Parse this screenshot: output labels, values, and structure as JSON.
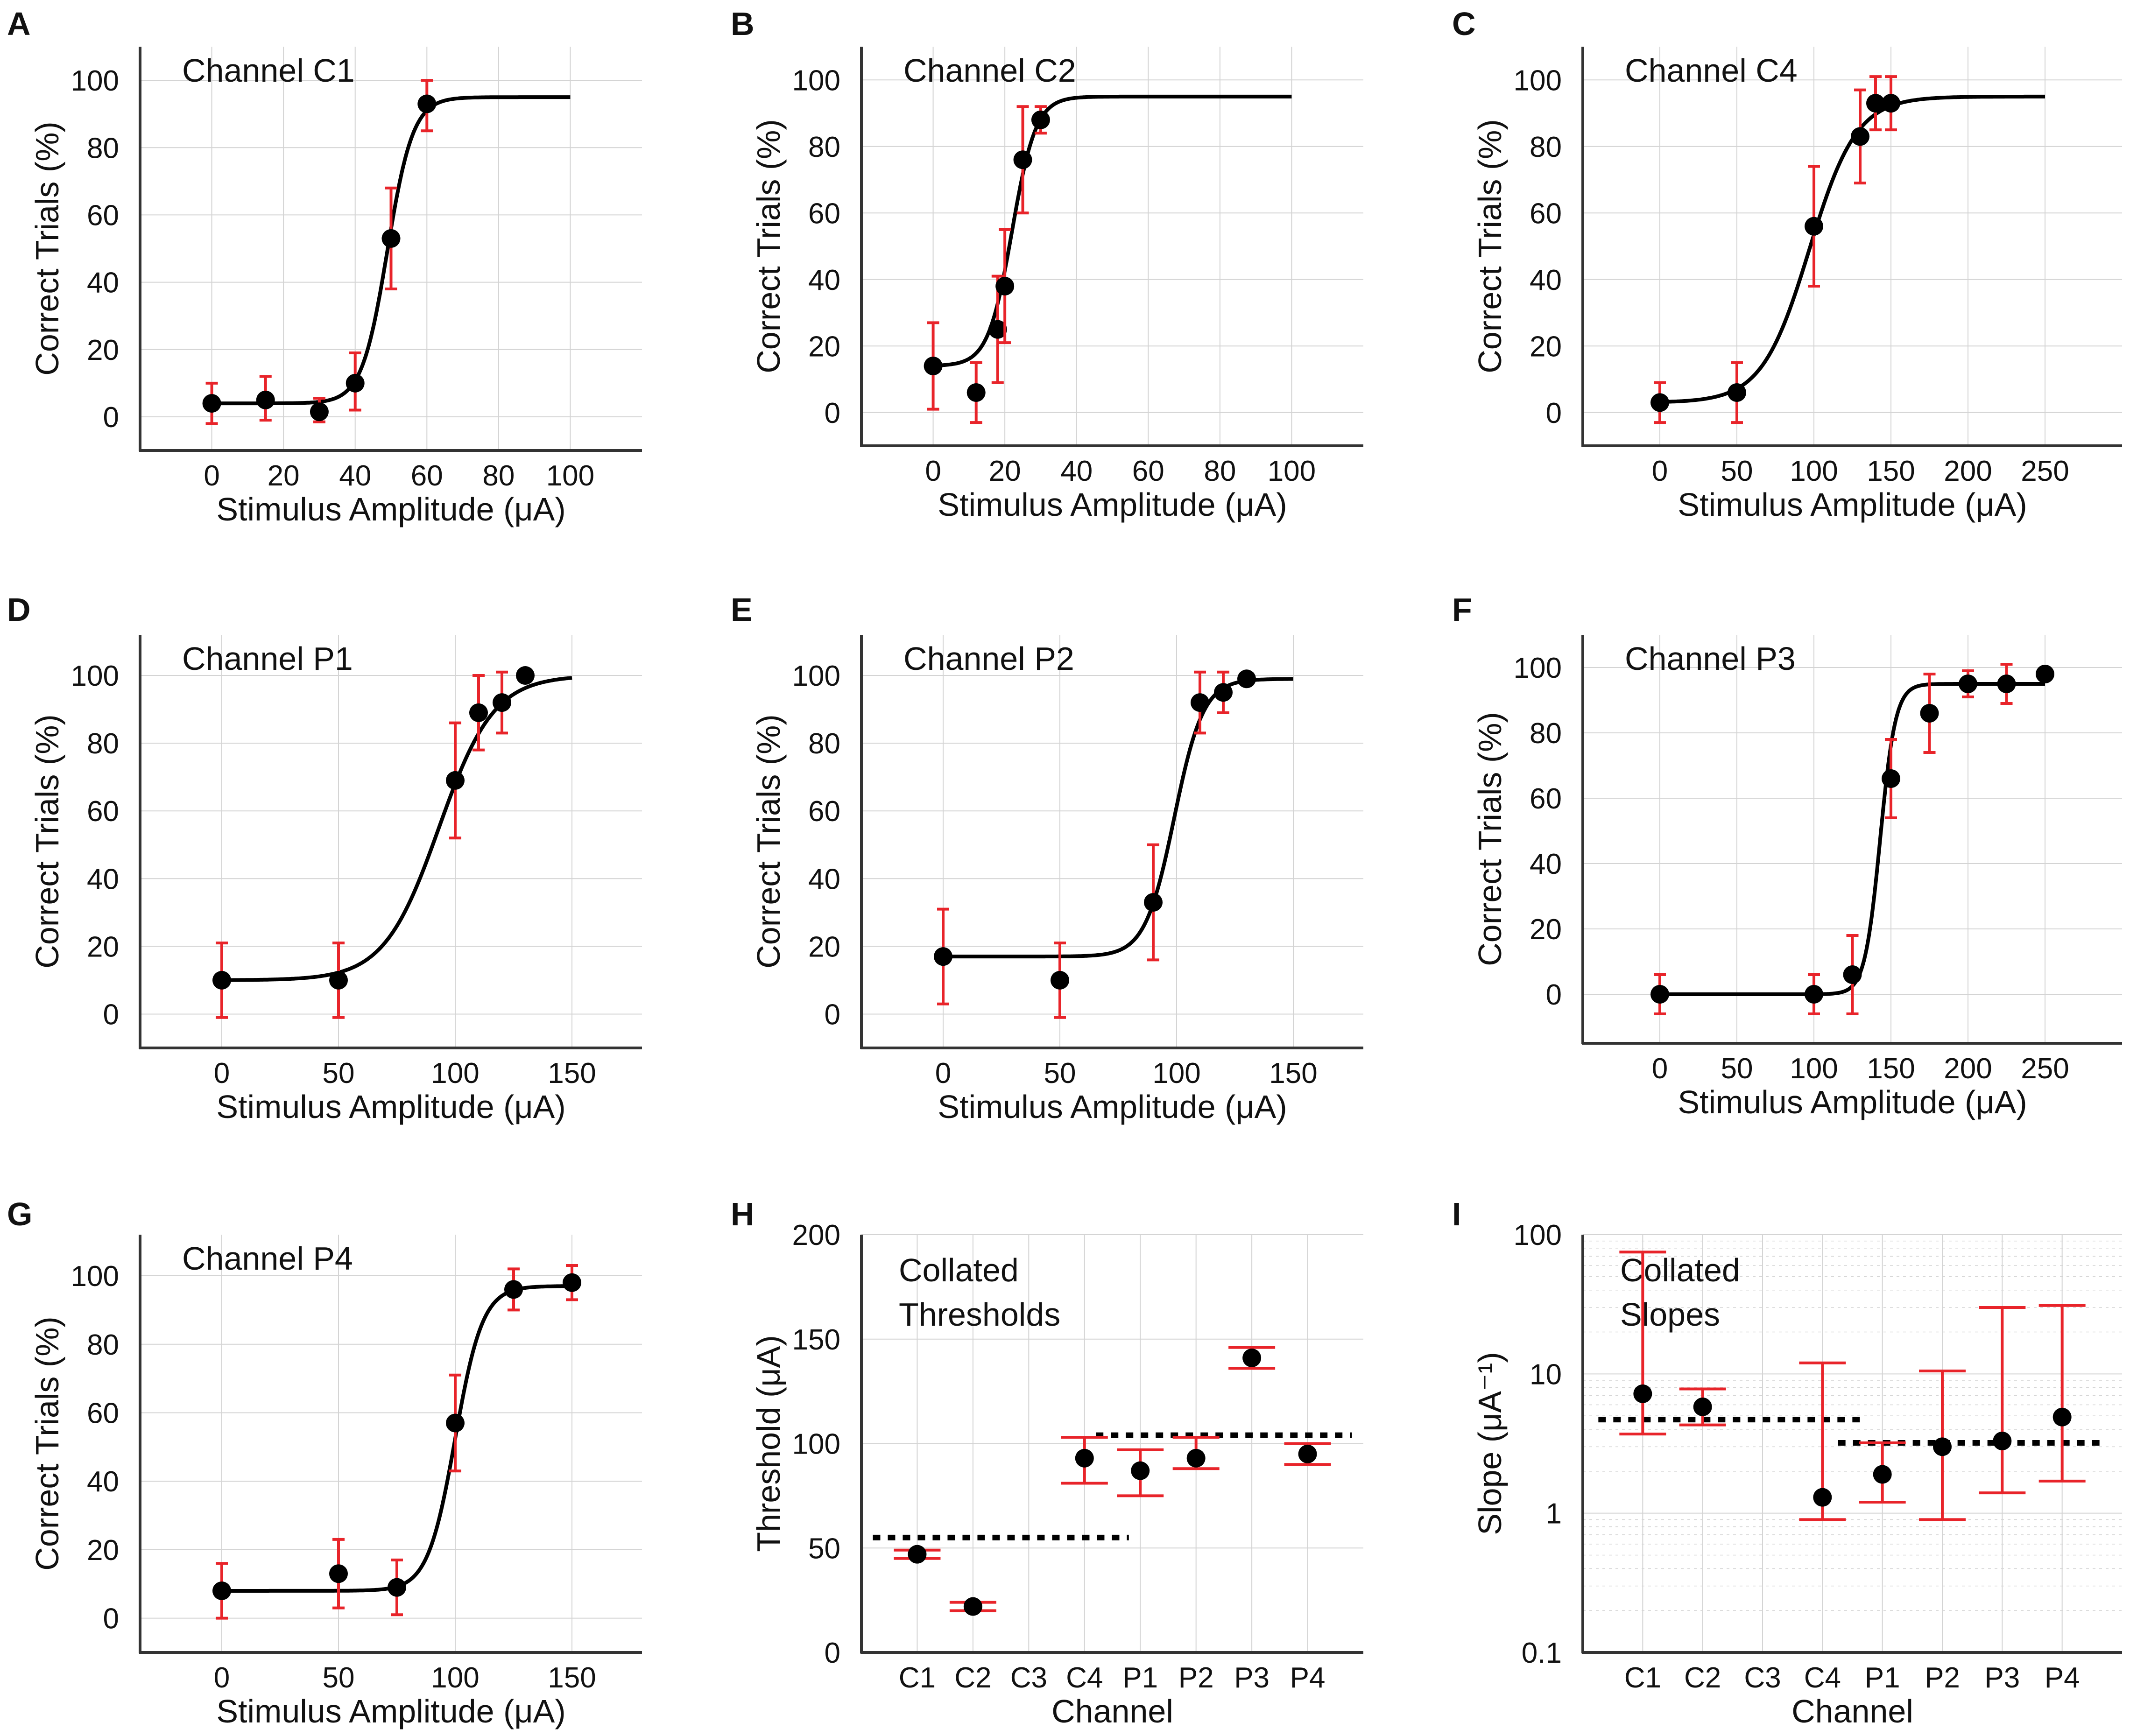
{
  "figure": {
    "colors": {
      "marker": "#000000",
      "errorbar": "#e8242a",
      "curve": "#000000",
      "axis": "#333333",
      "grid": "#d4d4d4"
    }
  },
  "chart_data": [
    {
      "id": "A",
      "type": "scatter",
      "title": "Channel C1",
      "xlabel": "Stimulus Amplitude (μA)",
      "ylabel": "Correct Trials (%)",
      "xlim": [
        -20,
        120
      ],
      "ylim": [
        -10,
        110
      ],
      "xticks": [
        0,
        20,
        40,
        60,
        80,
        100
      ],
      "yticks": [
        0,
        20,
        40,
        60,
        80,
        100
      ],
      "points": [
        {
          "x": 0,
          "y": 4,
          "err_low": 6,
          "err_high": 6
        },
        {
          "x": 15,
          "y": 5,
          "err_low": 6,
          "err_high": 7
        },
        {
          "x": 30,
          "y": 1.5,
          "err_low": 3,
          "err_high": 4
        },
        {
          "x": 40,
          "y": 10,
          "err_low": 8,
          "err_high": 9
        },
        {
          "x": 50,
          "y": 53,
          "err_low": 15,
          "err_high": 15
        },
        {
          "x": 60,
          "y": 93,
          "err_low": 8,
          "err_high": 7
        }
      ],
      "fit": {
        "type": "logistic",
        "lower": 4,
        "upper": 95,
        "threshold": 49,
        "slope": 0.28,
        "x_range": [
          0,
          100
        ]
      }
    },
    {
      "id": "B",
      "type": "scatter",
      "title": "Channel C2",
      "xlabel": "Stimulus Amplitude (μA)",
      "ylabel": "Correct Trials (%)",
      "xlim": [
        -20,
        120
      ],
      "ylim": [
        -10,
        110
      ],
      "xticks": [
        0,
        20,
        40,
        60,
        80,
        100
      ],
      "yticks": [
        0,
        20,
        40,
        60,
        80,
        100
      ],
      "points": [
        {
          "x": 0,
          "y": 14,
          "err_low": 13,
          "err_high": 13
        },
        {
          "x": 12,
          "y": 6,
          "err_low": 9,
          "err_high": 9
        },
        {
          "x": 18,
          "y": 25,
          "err_low": 16,
          "err_high": 16
        },
        {
          "x": 20,
          "y": 38,
          "err_low": 17,
          "err_high": 17
        },
        {
          "x": 25,
          "y": 76,
          "err_low": 16,
          "err_high": 16
        },
        {
          "x": 30,
          "y": 88,
          "err_low": 4,
          "err_high": 4
        }
      ],
      "fit": {
        "type": "logistic",
        "lower": 14,
        "upper": 95,
        "threshold": 22,
        "slope": 0.3,
        "x_range": [
          0,
          100
        ]
      }
    },
    {
      "id": "C",
      "type": "scatter",
      "title": "Channel C4",
      "xlabel": "Stimulus Amplitude (μA)",
      "ylabel": "Correct Trials (%)",
      "xlim": [
        -50,
        300
      ],
      "ylim": [
        -10,
        110
      ],
      "xticks": [
        0,
        50,
        100,
        150,
        200,
        250
      ],
      "yticks": [
        0,
        20,
        40,
        60,
        80,
        100
      ],
      "points": [
        {
          "x": 0,
          "y": 3,
          "err_low": 6,
          "err_high": 6
        },
        {
          "x": 50,
          "y": 6,
          "err_low": 9,
          "err_high": 9
        },
        {
          "x": 100,
          "y": 56,
          "err_low": 18,
          "err_high": 18
        },
        {
          "x": 130,
          "y": 83,
          "err_low": 14,
          "err_high": 14
        },
        {
          "x": 140,
          "y": 93,
          "err_low": 8,
          "err_high": 8
        },
        {
          "x": 150,
          "y": 93,
          "err_low": 8,
          "err_high": 8
        }
      ],
      "fit": {
        "type": "logistic",
        "lower": 3,
        "upper": 95,
        "threshold": 97,
        "slope": 0.065,
        "x_range": [
          0,
          250
        ]
      }
    },
    {
      "id": "D",
      "type": "scatter",
      "title": "Channel P1",
      "xlabel": "Stimulus Amplitude (μA)",
      "ylabel": "Correct Trials (%)",
      "xlim": [
        -35,
        180
      ],
      "ylim": [
        -10,
        112
      ],
      "xticks": [
        0,
        50,
        100,
        150
      ],
      "yticks": [
        0,
        20,
        40,
        60,
        80,
        100
      ],
      "points": [
        {
          "x": 0,
          "y": 10,
          "err_low": 11,
          "err_high": 11
        },
        {
          "x": 50,
          "y": 10,
          "err_low": 11,
          "err_high": 11
        },
        {
          "x": 100,
          "y": 69,
          "err_low": 17,
          "err_high": 17
        },
        {
          "x": 110,
          "y": 89,
          "err_low": 11,
          "err_high": 11
        },
        {
          "x": 120,
          "y": 92,
          "err_low": 9,
          "err_high": 9
        },
        {
          "x": 130,
          "y": 100,
          "err_low": 0,
          "err_high": 0
        }
      ],
      "fit": {
        "type": "logistic",
        "lower": 10,
        "upper": 100,
        "threshold": 93,
        "slope": 0.085,
        "x_range": [
          0,
          150
        ]
      }
    },
    {
      "id": "E",
      "type": "scatter",
      "title": "Channel P2",
      "xlabel": "Stimulus Amplitude (μA)",
      "ylabel": "Correct Trials (%)",
      "xlim": [
        -35,
        180
      ],
      "ylim": [
        -10,
        112
      ],
      "xticks": [
        0,
        50,
        100,
        150
      ],
      "yticks": [
        0,
        20,
        40,
        60,
        80,
        100
      ],
      "points": [
        {
          "x": 0,
          "y": 17,
          "err_low": 14,
          "err_high": 14
        },
        {
          "x": 50,
          "y": 10,
          "err_low": 11,
          "err_high": 11
        },
        {
          "x": 90,
          "y": 33,
          "err_low": 17,
          "err_high": 17
        },
        {
          "x": 110,
          "y": 92,
          "err_low": 9,
          "err_high": 9
        },
        {
          "x": 120,
          "y": 95,
          "err_low": 6,
          "err_high": 6
        },
        {
          "x": 130,
          "y": 99,
          "err_low": 0,
          "err_high": 0
        }
      ],
      "fit": {
        "type": "logistic",
        "lower": 17,
        "upper": 99,
        "threshold": 99,
        "slope": 0.16,
        "x_range": [
          0,
          150
        ]
      }
    },
    {
      "id": "F",
      "type": "scatter",
      "title": "Channel P3",
      "xlabel": "Stimulus Amplitude (μA)",
      "ylabel": "Correct Trials (%)",
      "xlim": [
        -50,
        300
      ],
      "ylim": [
        -15,
        110
      ],
      "xticks": [
        0,
        50,
        100,
        150,
        200,
        250
      ],
      "yticks": [
        0,
        20,
        40,
        60,
        80,
        100
      ],
      "points": [
        {
          "x": 0,
          "y": 0,
          "err_low": 6,
          "err_high": 6
        },
        {
          "x": 100,
          "y": 0,
          "err_low": 6,
          "err_high": 6
        },
        {
          "x": 125,
          "y": 6,
          "err_low": 12,
          "err_high": 12
        },
        {
          "x": 150,
          "y": 66,
          "err_low": 12,
          "err_high": 12
        },
        {
          "x": 175,
          "y": 86,
          "err_low": 12,
          "err_high": 12
        },
        {
          "x": 200,
          "y": 95,
          "err_low": 4,
          "err_high": 4
        },
        {
          "x": 225,
          "y": 95,
          "err_low": 6,
          "err_high": 6
        },
        {
          "x": 250,
          "y": 98,
          "err_low": 0,
          "err_high": 0
        }
      ],
      "fit": {
        "type": "logistic",
        "lower": 0,
        "upper": 95,
        "threshold": 143,
        "slope": 0.2,
        "x_range": [
          0,
          250
        ]
      }
    },
    {
      "id": "G",
      "type": "scatter",
      "title": "Channel P4",
      "xlabel": "Stimulus Amplitude (μA)",
      "ylabel": "Correct Trials (%)",
      "xlim": [
        -35,
        180
      ],
      "ylim": [
        -10,
        112
      ],
      "xticks": [
        0,
        50,
        100,
        150
      ],
      "yticks": [
        0,
        20,
        40,
        60,
        80,
        100
      ],
      "points": [
        {
          "x": 0,
          "y": 8,
          "err_low": 8,
          "err_high": 8
        },
        {
          "x": 50,
          "y": 13,
          "err_low": 10,
          "err_high": 10
        },
        {
          "x": 75,
          "y": 9,
          "err_low": 8,
          "err_high": 8
        },
        {
          "x": 100,
          "y": 57,
          "err_low": 14,
          "err_high": 14
        },
        {
          "x": 125,
          "y": 96,
          "err_low": 6,
          "err_high": 6
        },
        {
          "x": 150,
          "y": 98,
          "err_low": 5,
          "err_high": 5
        }
      ],
      "fit": {
        "type": "logistic",
        "lower": 8,
        "upper": 97,
        "threshold": 100,
        "slope": 0.17,
        "x_range": [
          0,
          150
        ]
      }
    },
    {
      "id": "H",
      "type": "scatter",
      "title_lines": [
        "Collated",
        "Thresholds"
      ],
      "xlabel": "Channel",
      "ylabel": "Threshold (μA)",
      "categories": [
        "C1",
        "C2",
        "C3",
        "C4",
        "P1",
        "P2",
        "P3",
        "P4"
      ],
      "ylim": [
        0,
        200
      ],
      "yticks": [
        0,
        50,
        100,
        150,
        200
      ],
      "values": [
        47,
        22,
        null,
        93,
        87,
        93,
        141,
        95
      ],
      "err_low": [
        2,
        2,
        null,
        12,
        12,
        5,
        5,
        5
      ],
      "err_high": [
        2,
        2,
        null,
        10,
        10,
        10,
        5,
        5
      ],
      "group_means": [
        {
          "categories": [
            "C1",
            "C4"
          ],
          "value": 55
        },
        {
          "categories": [
            "P1",
            "P4"
          ],
          "value": 104
        }
      ]
    },
    {
      "id": "I",
      "type": "scatter",
      "title_lines": [
        "Collated",
        "Slopes"
      ],
      "xlabel": "Channel",
      "ylabel": "Slope (μA⁻¹)",
      "categories": [
        "C1",
        "C2",
        "C3",
        "C4",
        "P1",
        "P2",
        "P3",
        "P4"
      ],
      "yscale": "log",
      "ylim": [
        0.1,
        100
      ],
      "yticks": [
        0.1,
        1,
        10,
        100
      ],
      "ytick_labels": [
        "0.1",
        "1",
        "10",
        "100"
      ],
      "values": [
        7.2,
        5.8,
        null,
        1.3,
        1.9,
        3.0,
        3.3,
        4.9
      ],
      "err_low": [
        3.7,
        4.3,
        null,
        0.9,
        1.2,
        0.9,
        1.4,
        1.7
      ],
      "err_high": [
        75,
        7.8,
        null,
        12,
        3.2,
        10.5,
        30,
        31
      ],
      "group_means": [
        {
          "categories": [
            "C1",
            "C4"
          ],
          "value": 4.7
        },
        {
          "categories": [
            "P1",
            "P4"
          ],
          "value": 3.2
        }
      ]
    }
  ]
}
